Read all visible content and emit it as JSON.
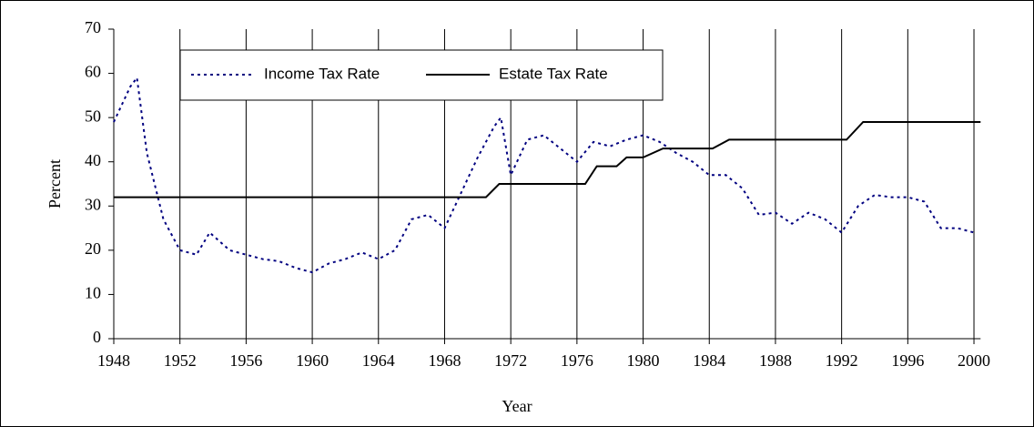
{
  "chart_data": {
    "type": "line",
    "xlabel": "Year",
    "ylabel": "Percent",
    "xlim": [
      1948,
      2000.4
    ],
    "xticks": [
      1948,
      1952,
      1956,
      1960,
      1964,
      1968,
      1972,
      1976,
      1980,
      1984,
      1988,
      1992,
      1996,
      2000
    ],
    "ylim": [
      0,
      70
    ],
    "yticks": [
      0,
      10,
      20,
      30,
      40,
      50,
      60,
      70
    ],
    "grid": "x",
    "series": [
      {
        "name": "Income Tax Rate",
        "color": "#000080",
        "style": "dotted",
        "x": [
          1948,
          1949,
          1949.4,
          1950,
          1951,
          1952,
          1953,
          1953.8,
          1955,
          1956,
          1957,
          1958,
          1959,
          1960,
          1961,
          1962,
          1963,
          1964,
          1965,
          1966,
          1967,
          1968,
          1969,
          1970,
          1971,
          1971.4,
          1972,
          1973,
          1974,
          1975,
          1976,
          1977,
          1978,
          1979,
          1980,
          1981,
          1982,
          1983,
          1984,
          1985,
          1986,
          1987,
          1988,
          1989,
          1990,
          1991,
          1992,
          1993,
          1994,
          1995,
          1996,
          1997,
          1998,
          1999,
          2000
        ],
        "values": [
          49,
          57,
          59,
          42,
          27,
          20,
          19,
          24,
          20,
          19,
          18,
          17.5,
          16,
          15,
          17,
          18,
          19.5,
          18,
          20,
          27,
          28,
          25,
          33,
          41,
          48,
          50,
          37,
          45,
          46,
          43,
          40,
          44.5,
          43.5,
          45,
          46,
          44.5,
          42,
          40,
          37,
          37,
          34,
          28,
          28.5,
          26,
          28.5,
          27,
          24,
          30,
          32.5,
          32,
          32,
          31,
          25,
          25,
          24
        ]
      },
      {
        "name": "Estate Tax Rate",
        "color": "#000000",
        "style": "solid",
        "x": [
          1948,
          1970.5,
          1971.3,
          1976.5,
          1977.2,
          1978.4,
          1979,
          1980,
          1981.2,
          1984.2,
          1985.2,
          1992.3,
          1993.3,
          2000.4
        ],
        "values": [
          32,
          32,
          35,
          35,
          39,
          39,
          41,
          41,
          43,
          43,
          45,
          45,
          49,
          49
        ]
      }
    ]
  }
}
